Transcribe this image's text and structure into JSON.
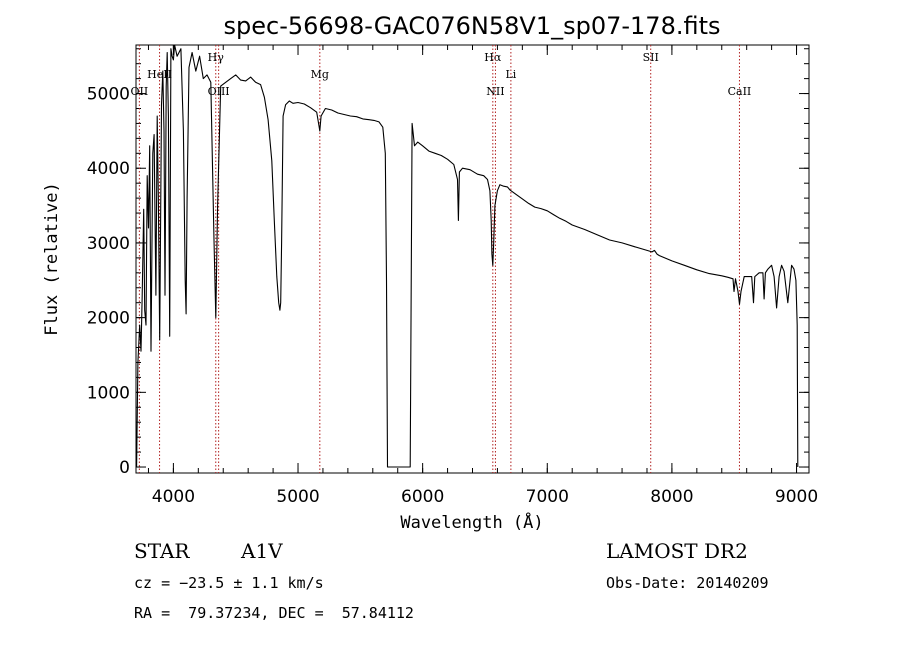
{
  "chart_data": {
    "type": "line",
    "title": "spec-56698-GAC076N58V1_sp07-178.fits",
    "xlabel": "Wavelength (Å)",
    "ylabel": "Flux (relative)",
    "xlim": [
      3700,
      9100
    ],
    "ylim": [
      -80,
      5650
    ],
    "xticks": [
      4000,
      5000,
      6000,
      7000,
      8000,
      9000
    ],
    "yticks": [
      0,
      1000,
      2000,
      3000,
      4000,
      5000
    ],
    "minor_xstep": 200,
    "minor_ystep": 200,
    "line_color": "#000000",
    "marker_color": "#b22222",
    "spectral_lines": [
      {
        "name": "OII",
        "wavelength": 3727,
        "label_row": "low"
      },
      {
        "name": "HeII",
        "wavelength": 3889,
        "label_row": "mid"
      },
      {
        "name": "Hγ",
        "wavelength": 4340,
        "label_row": "high"
      },
      {
        "name": "OIII",
        "wavelength": 4363,
        "label_row": "low"
      },
      {
        "name": "Mg",
        "wavelength": 5175,
        "label_row": "mid"
      },
      {
        "name": "Hα",
        "wavelength": 6563,
        "label_row": "high"
      },
      {
        "name": "NII",
        "wavelength": 6584,
        "label_row": "low"
      },
      {
        "name": "Li",
        "wavelength": 6708,
        "label_row": "mid"
      },
      {
        "name": "SII",
        "wavelength": 7830,
        "label_row": "high"
      },
      {
        "name": "CaII",
        "wavelength": 8542,
        "label_row": "low"
      }
    ],
    "spectrum": {
      "x": [
        3705,
        3715,
        3730,
        3740,
        3750,
        3762,
        3770,
        3780,
        3790,
        3800,
        3810,
        3820,
        3835,
        3845,
        3860,
        3870,
        3880,
        3890,
        3905,
        3915,
        3925,
        3933,
        3942,
        3950,
        3960,
        3970,
        3980,
        3990,
        4000,
        4010,
        4030,
        4060,
        4080,
        4095,
        4102,
        4110,
        4125,
        4150,
        4180,
        4210,
        4240,
        4270,
        4300,
        4325,
        4340,
        4355,
        4380,
        4420,
        4460,
        4500,
        4540,
        4580,
        4620,
        4660,
        4700,
        4730,
        4760,
        4790,
        4810,
        4830,
        4845,
        4855,
        4861,
        4868,
        4880,
        4900,
        4930,
        4960,
        5000,
        5050,
        5100,
        5150,
        5170,
        5175,
        5185,
        5220,
        5270,
        5320,
        5370,
        5420,
        5470,
        5520,
        5570,
        5610,
        5650,
        5680,
        5700,
        5710,
        5718,
        5725,
        5740,
        5760,
        5900,
        5915,
        5925,
        5935,
        5960,
        6000,
        6050,
        6100,
        6150,
        6200,
        6250,
        6280,
        6287,
        6295,
        6320,
        6380,
        6440,
        6490,
        6520,
        6540,
        6550,
        6556,
        6563,
        6570,
        6580,
        6600,
        6620,
        6650,
        6680,
        6700,
        6750,
        6800,
        6850,
        6900,
        6950,
        7000,
        7050,
        7100,
        7150,
        7200,
        7300,
        7400,
        7500,
        7600,
        7700,
        7800,
        7840,
        7860,
        7880,
        7900,
        8000,
        8100,
        8200,
        8300,
        8400,
        8450,
        8490,
        8498,
        8510,
        8530,
        8542,
        8554,
        8580,
        8640,
        8655,
        8665,
        8700,
        8730,
        8740,
        8750,
        8770,
        8800,
        8820,
        8840,
        8860,
        8880,
        8900,
        8930,
        8960,
        8980,
        8995,
        9005,
        9010
      ],
      "y": [
        0,
        1400,
        1900,
        1550,
        2300,
        3450,
        2100,
        1900,
        3900,
        3200,
        4300,
        1550,
        4200,
        4450,
        2300,
        4700,
        3550,
        1700,
        4850,
        5300,
        4500,
        2300,
        5100,
        5550,
        4700,
        1750,
        5600,
        5500,
        5450,
        5650,
        5500,
        5600,
        4500,
        2500,
        2050,
        3600,
        5350,
        5550,
        5300,
        5500,
        5200,
        5250,
        5150,
        3100,
        2000,
        3500,
        5100,
        5150,
        5200,
        5250,
        5180,
        5170,
        5220,
        5150,
        5120,
        4950,
        4650,
        4100,
        3300,
        2550,
        2200,
        2100,
        2200,
        3000,
        4700,
        4850,
        4900,
        4870,
        4880,
        4860,
        4810,
        4750,
        4550,
        4500,
        4700,
        4800,
        4780,
        4740,
        4720,
        4700,
        4690,
        4660,
        4650,
        4640,
        4620,
        4550,
        4200,
        2500,
        0,
        0,
        0,
        0,
        0,
        4600,
        4450,
        4300,
        4350,
        4300,
        4230,
        4200,
        4170,
        4120,
        4050,
        3850,
        3300,
        3950,
        4000,
        3980,
        3920,
        3900,
        3850,
        3700,
        3300,
        2850,
        2700,
        3000,
        3500,
        3700,
        3780,
        3760,
        3750,
        3710,
        3650,
        3590,
        3530,
        3480,
        3460,
        3430,
        3380,
        3330,
        3290,
        3240,
        3180,
        3110,
        3040,
        3000,
        2950,
        2900,
        2880,
        2900,
        2850,
        2830,
        2760,
        2700,
        2640,
        2590,
        2560,
        2540,
        2520,
        2350,
        2520,
        2350,
        2180,
        2350,
        2550,
        2550,
        2200,
        2550,
        2600,
        2600,
        2250,
        2600,
        2650,
        2700,
        2550,
        2130,
        2550,
        2700,
        2620,
        2200,
        2700,
        2650,
        2500,
        1900,
        0
      ]
    }
  },
  "info": {
    "object_class": "STAR",
    "subclass": "A1V",
    "survey": "LAMOST DR2",
    "cz": "cz = −23.5 ± 1.1 km/s",
    "obs_date": "Obs-Date: 20140209",
    "coords": "RA =  79.37234, DEC =  57.84112"
  }
}
